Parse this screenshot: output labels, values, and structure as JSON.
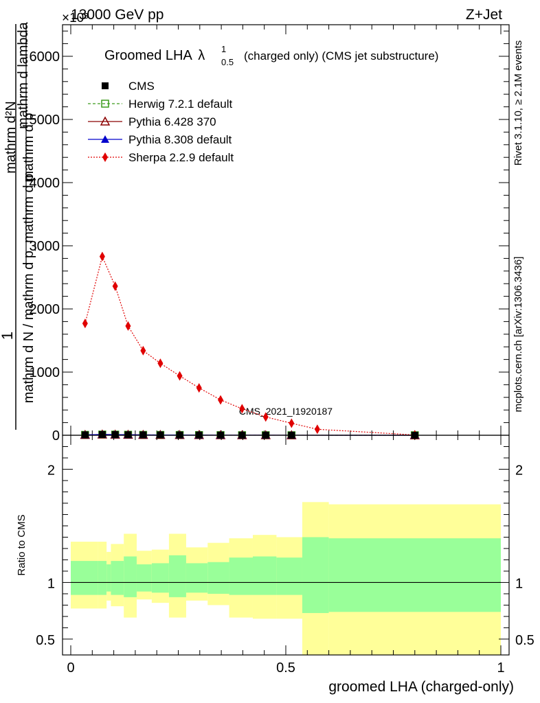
{
  "header": {
    "left": "13000 GeV pp",
    "right": "Z+Jet",
    "exponent": "×10³"
  },
  "side_labels": {
    "rivet": "Rivet 3.1.10, ≥ 2.1M events",
    "mcplots": "mcplots.cern.ch [arXiv:1306.3436]"
  },
  "colors": {
    "cms": "#000000",
    "herwig": "#3a9a1a",
    "pythia6": "#8b0000",
    "pythia8": "#0000cc",
    "sherpa": "#e00000",
    "band_outer": "#ffff99",
    "band_inner": "#99ff99"
  },
  "chart_data": [
    {
      "type": "line",
      "title_main": "Groomed LHA",
      "title_lambda": "λ",
      "title_sub": "0.5",
      "title_sup": "1",
      "title_suffix": "(charged only) (CMS jet substructure)",
      "watermark": "CMS_2021_I1920187",
      "ylabel_line1": "1",
      "ylabel_line2": "mathrm d N / mathrm d p_mathrm d p",
      "ylabel_line2_sub": "T",
      "ylabel_line3": "mathrm d²N",
      "ylabel_line4": "mathrm d p",
      "ylabel_line4_sub": "T",
      "ylabel_line5": "mathrm d lambda",
      "ylim": [
        0,
        6500
      ],
      "yticks": [
        {
          "v": 0,
          "label": "0"
        },
        {
          "v": 1000,
          "label": "1000"
        },
        {
          "v": 2000,
          "label": "2000"
        },
        {
          "v": 3000,
          "label": "3000"
        },
        {
          "v": 4000,
          "label": "4000"
        },
        {
          "v": 5000,
          "label": "5000"
        },
        {
          "v": 6000,
          "label": "6000"
        }
      ],
      "xlim": [
        0,
        1
      ],
      "legend_position": "top-left",
      "series": [
        {
          "name": "CMS",
          "key": "cms",
          "marker": "square",
          "x": [
            0.0333,
            0.0733,
            0.1033,
            0.1333,
            0.1683,
            0.2083,
            0.2533,
            0.2983,
            0.3483,
            0.3983,
            0.4533,
            0.5133,
            0.8
          ],
          "y": [
            6,
            12,
            10,
            8,
            6,
            5,
            4,
            3,
            2,
            1,
            1,
            0.5,
            0.2
          ]
        },
        {
          "name": "Herwig 7.2.1 default",
          "key": "herwig",
          "marker": "open-square",
          "dash": "4,3",
          "x": [
            0.0333,
            0.0733,
            0.1033,
            0.1333,
            0.1683,
            0.2083,
            0.2533,
            0.2983,
            0.3483,
            0.3983,
            0.4533,
            0.5133,
            0.8
          ],
          "y": [
            6,
            11,
            10,
            8,
            6,
            5,
            4,
            3,
            2,
            1,
            1,
            0.5,
            0.2
          ]
        },
        {
          "name": "Pythia 6.428 370",
          "key": "pythia6",
          "marker": "open-triangle",
          "x": [
            0.0333,
            0.0733,
            0.1033,
            0.1333,
            0.1683,
            0.2083,
            0.2533,
            0.2983,
            0.3483,
            0.3983,
            0.4533,
            0.5133,
            0.8
          ],
          "y": [
            6,
            12,
            10,
            8,
            6,
            5,
            4,
            3,
            2,
            1,
            1,
            0.5,
            0.2
          ]
        },
        {
          "name": "Pythia 8.308 default",
          "key": "pythia8",
          "marker": "triangle",
          "x": [
            0.0333,
            0.0733,
            0.1033,
            0.1333,
            0.1683,
            0.2083,
            0.2533,
            0.2983,
            0.3483,
            0.3983,
            0.4533,
            0.5133,
            0.8
          ],
          "y": [
            6,
            12,
            10,
            8,
            6,
            5,
            4,
            3,
            2,
            1,
            1,
            0.5,
            0.2
          ]
        },
        {
          "name": "Sherpa 2.2.9 default",
          "key": "sherpa",
          "marker": "diamond",
          "dash": "2,2",
          "x": [
            0.0333,
            0.0733,
            0.1033,
            0.1333,
            0.1683,
            0.2083,
            0.2533,
            0.2983,
            0.3483,
            0.3983,
            0.4533,
            0.5133,
            0.5733,
            0.8
          ],
          "y": [
            1770,
            2830,
            2360,
            1730,
            1340,
            1140,
            940,
            750,
            560,
            420,
            290,
            190,
            95,
            5
          ]
        }
      ]
    },
    {
      "type": "area",
      "ylabel": "Ratio to CMS",
      "xlabel": "groomed LHA (charged-only)",
      "ylim": [
        0.36,
        2.3
      ],
      "yticks": [
        {
          "v": 0.5,
          "label": "0.5"
        },
        {
          "v": 1,
          "label": "1"
        },
        {
          "v": 2,
          "label": "2"
        }
      ],
      "xlim": [
        0,
        1
      ],
      "xticks": [
        {
          "v": 0,
          "label": "0"
        },
        {
          "v": 0.5,
          "label": "0.5"
        },
        {
          "v": 1,
          "label": "1"
        }
      ],
      "reference": 1,
      "bands": [
        {
          "x0": 0.0,
          "x1": 0.0633,
          "inner": [
            0.89,
            1.19
          ],
          "outer": [
            0.77,
            1.36
          ]
        },
        {
          "x0": 0.0633,
          "x1": 0.0833,
          "inner": [
            0.89,
            1.19
          ],
          "outer": [
            0.77,
            1.36
          ]
        },
        {
          "x0": 0.0833,
          "x1": 0.0933,
          "inner": [
            0.92,
            1.16
          ],
          "outer": [
            0.84,
            1.27
          ]
        },
        {
          "x0": 0.0933,
          "x1": 0.1233,
          "inner": [
            0.89,
            1.19
          ],
          "outer": [
            0.79,
            1.34
          ]
        },
        {
          "x0": 0.1233,
          "x1": 0.1533,
          "inner": [
            0.87,
            1.23
          ],
          "outer": [
            0.69,
            1.43
          ]
        },
        {
          "x0": 0.1533,
          "x1": 0.1883,
          "inner": [
            0.92,
            1.16
          ],
          "outer": [
            0.85,
            1.28
          ]
        },
        {
          "x0": 0.1883,
          "x1": 0.2283,
          "inner": [
            0.91,
            1.17
          ],
          "outer": [
            0.82,
            1.29
          ]
        },
        {
          "x0": 0.2283,
          "x1": 0.2683,
          "inner": [
            0.87,
            1.24
          ],
          "outer": [
            0.69,
            1.43
          ]
        },
        {
          "x0": 0.2683,
          "x1": 0.3183,
          "inner": [
            0.91,
            1.17
          ],
          "outer": [
            0.84,
            1.31
          ]
        },
        {
          "x0": 0.3183,
          "x1": 0.3683,
          "inner": [
            0.9,
            1.18
          ],
          "outer": [
            0.8,
            1.35
          ]
        },
        {
          "x0": 0.3683,
          "x1": 0.4233,
          "inner": [
            0.89,
            1.22
          ],
          "outer": [
            0.69,
            1.39
          ]
        },
        {
          "x0": 0.4233,
          "x1": 0.4783,
          "inner": [
            0.89,
            1.23
          ],
          "outer": [
            0.68,
            1.42
          ]
        },
        {
          "x0": 0.4783,
          "x1": 0.5383,
          "inner": [
            0.89,
            1.22
          ],
          "outer": [
            0.68,
            1.4
          ]
        },
        {
          "x0": 0.5383,
          "x1": 0.6,
          "inner": [
            0.73,
            1.4
          ],
          "outer": [
            0.36,
            1.71
          ]
        },
        {
          "x0": 0.6,
          "x1": 1.0,
          "inner": [
            0.74,
            1.39
          ],
          "outer": [
            0.36,
            1.69
          ]
        }
      ]
    }
  ]
}
